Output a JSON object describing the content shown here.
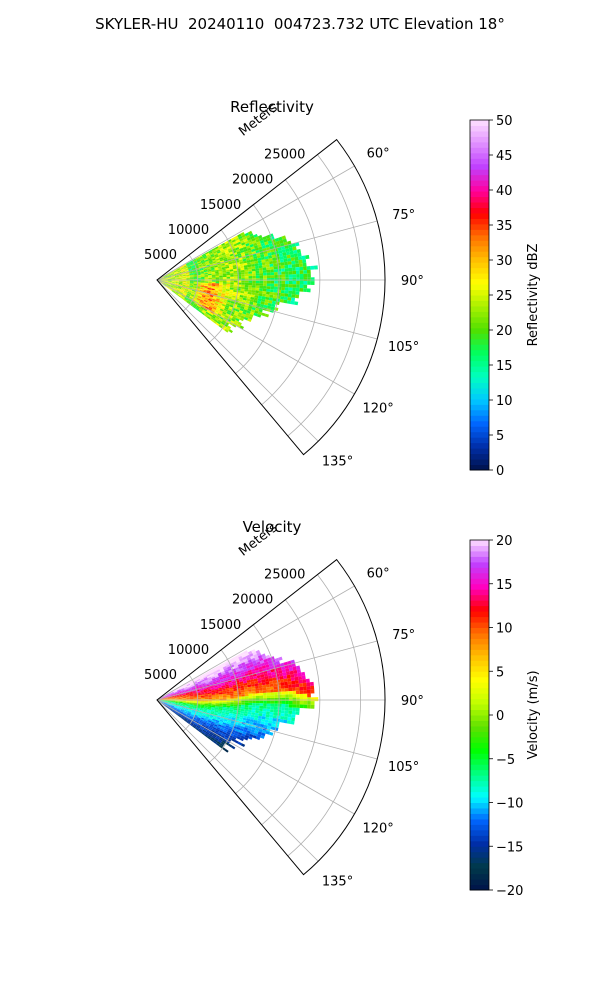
{
  "figure": {
    "title": "SKYLER-HU  20240110  004723.732 UTC Elevation 18°"
  },
  "chart_data": [
    {
      "type": "heatmap",
      "projection": "polar-sector",
      "title": "Reflectivity",
      "radial_label": "Meters",
      "radial_ticks": [
        5000,
        10000,
        15000,
        20000,
        25000
      ],
      "radial_tick_labels": [
        "5000",
        "10000",
        "15000",
        "20000",
        "25000"
      ],
      "rlim": [
        0,
        28000
      ],
      "angle_ticks": [
        60,
        75,
        90,
        105,
        120,
        135
      ],
      "angle_tick_labels": [
        "60°",
        "75°",
        "90°",
        "105°",
        "120°",
        "135°"
      ],
      "angle_lim": [
        52,
        140
      ],
      "data_coverage": {
        "azimuth": [
          61,
          126
        ],
        "max_range": [
          10000,
          19000
        ]
      },
      "grid": true,
      "colorbar": {
        "label": "Reflectivity dBZ",
        "range": [
          0,
          50
        ],
        "ticks": [
          0,
          5,
          10,
          15,
          20,
          25,
          30,
          35,
          40,
          45,
          50
        ],
        "tick_labels": [
          "0",
          "5",
          "10",
          "15",
          "20",
          "25",
          "30",
          "35",
          "40",
          "45",
          "50"
        ],
        "colors": [
          "#00124a",
          "#002ea8",
          "#0066ff",
          "#00c8ff",
          "#00ffc0",
          "#00ff60",
          "#50e000",
          "#a8f000",
          "#ffff00",
          "#ffc000",
          "#ff7000",
          "#ff0000",
          "#ff00a0",
          "#c040ff",
          "#e090ff",
          "#ffe0ff"
        ]
      }
    },
    {
      "type": "heatmap",
      "projection": "polar-sector",
      "title": "Velocity",
      "radial_label": "Meters",
      "radial_ticks": [
        5000,
        10000,
        15000,
        20000,
        25000
      ],
      "radial_tick_labels": [
        "5000",
        "10000",
        "15000",
        "20000",
        "25000"
      ],
      "rlim": [
        0,
        28000
      ],
      "angle_ticks": [
        60,
        75,
        90,
        105,
        120,
        135
      ],
      "angle_tick_labels": [
        "60°",
        "75°",
        "90°",
        "105°",
        "120°",
        "135°"
      ],
      "angle_lim": [
        52,
        140
      ],
      "data_coverage": {
        "azimuth": [
          61,
          126
        ],
        "max_range": [
          10000,
          19000
        ]
      },
      "grid": true,
      "colorbar": {
        "label": "Velocity (m/s)",
        "range": [
          -20,
          20
        ],
        "ticks": [
          -20,
          -15,
          -10,
          -5,
          0,
          5,
          10,
          15,
          20
        ],
        "tick_labels": [
          "−20",
          "−15",
          "−10",
          "−5",
          "0",
          "5",
          "10",
          "15",
          "20"
        ],
        "colors": [
          "#00124a",
          "#003a4a",
          "#002ea8",
          "#0066ff",
          "#00ffff",
          "#00ff80",
          "#00ff00",
          "#60e000",
          "#c0ff00",
          "#ffff00",
          "#ffc000",
          "#ff7000",
          "#ff0000",
          "#ff00c0",
          "#c040ff",
          "#ffe0ff"
        ]
      }
    }
  ]
}
